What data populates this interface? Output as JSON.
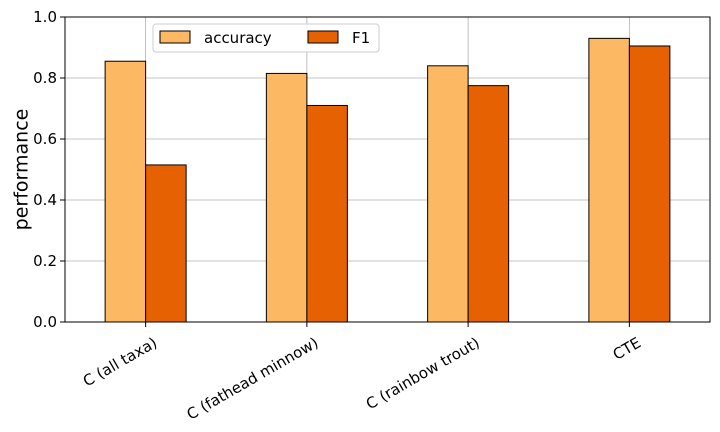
{
  "chart_data": {
    "type": "bar",
    "title": "",
    "xlabel": "",
    "ylabel": "performance",
    "ylim": [
      0,
      1.0
    ],
    "yticks": [
      0.0,
      0.2,
      0.4,
      0.6,
      0.8,
      1.0
    ],
    "ytick_labels": [
      "0.0",
      "0.2",
      "0.4",
      "0.6",
      "0.8",
      "1.0"
    ],
    "categories": [
      "C (all taxa)",
      "C (fathead minnow)",
      "C (rainbow trout)",
      "CTE"
    ],
    "series": [
      {
        "name": "accuracy",
        "color": "#fdb863",
        "values": [
          0.855,
          0.815,
          0.84,
          0.93
        ]
      },
      {
        "name": "F1",
        "color": "#e66101",
        "values": [
          0.515,
          0.71,
          0.775,
          0.905
        ]
      }
    ],
    "grid": true,
    "legend_position": "top-left"
  }
}
